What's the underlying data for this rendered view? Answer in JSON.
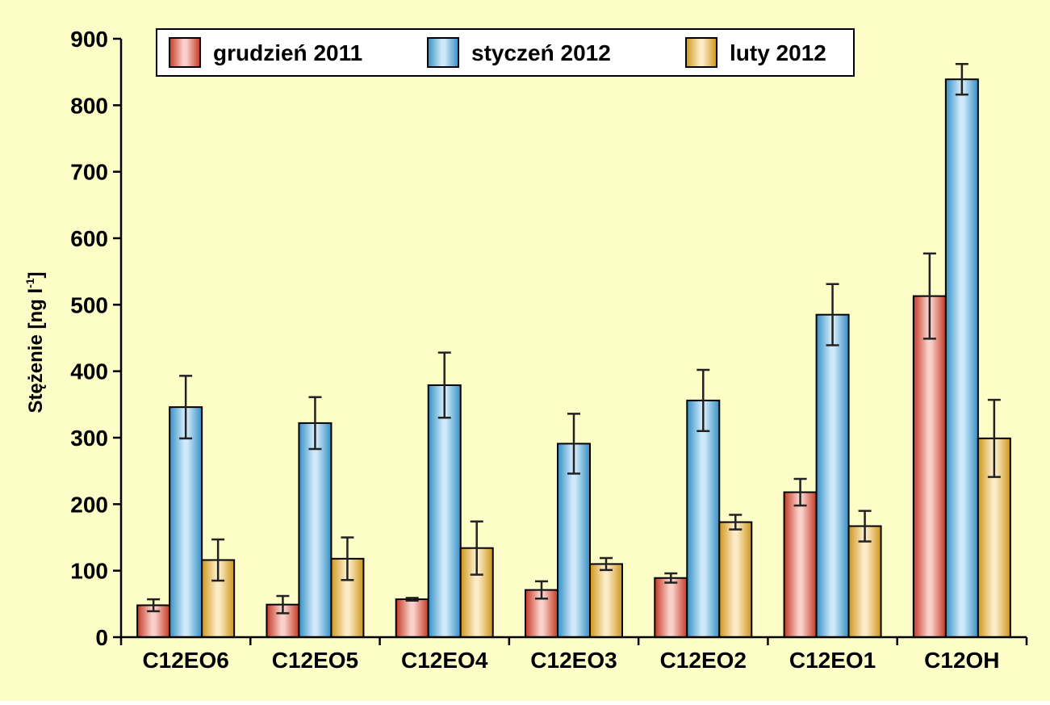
{
  "chart_data": {
    "type": "bar",
    "title": "",
    "ylabel": "Stężenie [ng l",
    "ylabel_sup": "-1",
    "ylabel_close": "]",
    "xlabel": "",
    "ylim": [
      0,
      900
    ],
    "yticks": [
      "0",
      "100",
      "200",
      "300",
      "400",
      "500",
      "600",
      "700",
      "800",
      "900"
    ],
    "grid": false,
    "legend_position": "top",
    "background_color": "#fdfdc8",
    "categories": [
      "C12EO6",
      "C12EO5",
      "C12EO4",
      "C12EO3",
      "C12EO2",
      "C12EO1",
      "C12OH"
    ],
    "series": [
      {
        "name": "grudzień 2011",
        "color": "#e8432a",
        "values": [
          48,
          49,
          57,
          71,
          89,
          218,
          513
        ],
        "errors": [
          9,
          13,
          2,
          13,
          7,
          20,
          64
        ]
      },
      {
        "name": "styczeń 2012",
        "color": "#3da8e8",
        "values": [
          346,
          322,
          379,
          291,
          356,
          485,
          839
        ],
        "errors": [
          47,
          39,
          49,
          45,
          46,
          46,
          23
        ]
      },
      {
        "name": "luty 2012",
        "color": "#f2b01e",
        "values": [
          116,
          118,
          134,
          110,
          173,
          167,
          299
        ],
        "errors": [
          31,
          32,
          40,
          9,
          11,
          23,
          58
        ]
      }
    ]
  }
}
